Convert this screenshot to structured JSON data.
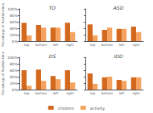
{
  "chart_data": [
    {
      "type": "bar",
      "title": "TD",
      "categories": [
        "top",
        "bottom",
        "left",
        "right"
      ],
      "series": [
        {
          "name": "children",
          "color": "#D2691E",
          "values": [
            57,
            50,
            42,
            57
          ]
        },
        {
          "name": "activity",
          "color": "#F4A460",
          "values": [
            18,
            42,
            42,
            28
          ]
        }
      ],
      "ylabel": "Percentage of fixation time",
      "ylim": [
        0,
        100
      ],
      "yticks": [
        {
          "value": 0,
          "label": "0%"
        },
        {
          "value": 20,
          "label": "20%"
        },
        {
          "value": 40,
          "label": "40%"
        },
        {
          "value": 60,
          "label": "60%"
        },
        {
          "value": 80,
          "label": "80%"
        },
        {
          "value": 100,
          "label": "100%"
        }
      ],
      "grid": false,
      "legend": "lower center"
    },
    {
      "type": "bar",
      "title": "ASD",
      "categories": [
        "top",
        "bottom",
        "left",
        "right"
      ],
      "series": [
        {
          "name": "children",
          "color": "#D2691E",
          "values": [
            52,
            35,
            38,
            45
          ]
        },
        {
          "name": "activity",
          "color": "#F4A460",
          "values": [
            18,
            42,
            38,
            28
          ]
        }
      ],
      "ylim": [
        0,
        100
      ],
      "yticks": [
        0,
        20,
        40,
        60,
        80,
        100
      ],
      "tick_labels": "x",
      "grid": false,
      "legend": "lower center"
    },
    {
      "type": "bar",
      "title": "DS",
      "categories": [
        "top",
        "bottom",
        "left",
        "right"
      ],
      "series": [
        {
          "name": "children",
          "color": "#D2691E",
          "values": [
            60,
            62,
            42,
            60
          ]
        },
        {
          "name": "activity",
          "color": "#F4A460",
          "values": [
            12,
            27,
            32,
            22
          ]
        }
      ],
      "ylabel": "Percentage of fixation time",
      "ylim": [
        0,
        100
      ],
      "yticks": [
        {
          "value": 0,
          "label": "0%"
        },
        {
          "value": 20,
          "label": "20%"
        },
        {
          "value": 40,
          "label": "40%"
        },
        {
          "value": 60,
          "label": "60%"
        },
        {
          "value": 80,
          "label": "80%"
        },
        {
          "value": 100,
          "label": "100%"
        }
      ],
      "grid": false,
      "legend": "lower center"
    },
    {
      "type": "bar",
      "title": "IDD",
      "categories": [
        "top",
        "bottom",
        "left",
        "right"
      ],
      "series": [
        {
          "name": "children",
          "color": "#D2691E",
          "values": [
            50,
            38,
            30,
            38
          ]
        },
        {
          "name": "activity",
          "color": "#F4A460",
          "values": [
            18,
            40,
            27,
            38
          ]
        }
      ],
      "ylim": [
        0,
        100
      ],
      "yticks": [
        0,
        20,
        40,
        60,
        80,
        100
      ],
      "tick_labels": "x",
      "grid": false,
      "legend": "lower center"
    }
  ]
}
